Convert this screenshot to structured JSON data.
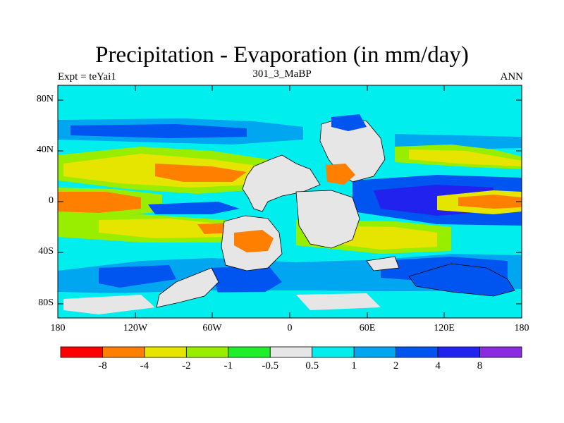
{
  "title": "Precipitation - Evaporation (in mm/day)",
  "subtitle_left": "Expt = teYai1",
  "subtitle_center": "301_3_MaBP",
  "subtitle_right": "ANN",
  "lat_ticks": [
    "80N",
    "40N",
    "0",
    "40S",
    "80S"
  ],
  "lon_ticks": [
    "180",
    "120W",
    "60W",
    "0",
    "60E",
    "120E",
    "180"
  ],
  "colorbar": {
    "labels": [
      "-8",
      "-4",
      "-2",
      "-1",
      "-0.5",
      "0.5",
      "1",
      "2",
      "4",
      "8"
    ],
    "colors": [
      "#ff0000",
      "#ff7f00",
      "#e5e500",
      "#99ee00",
      "#1fef2a",
      "#e6e6e6",
      "#00eeee",
      "#00a7f0",
      "#0054f0",
      "#2222ee",
      "#8a2be2"
    ]
  },
  "colors": {
    "land": "#e6e6e6",
    "ocean_base": "#00eeee"
  }
}
